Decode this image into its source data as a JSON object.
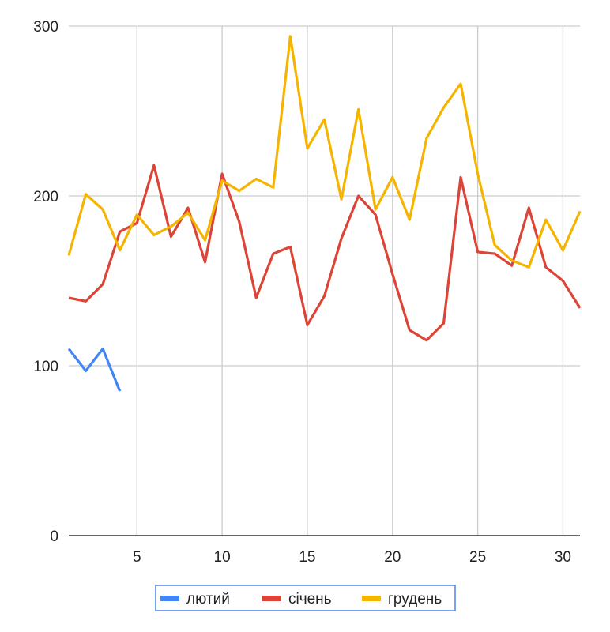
{
  "chart_data": {
    "type": "line",
    "title": "",
    "xlabel": "",
    "ylabel": "",
    "xlim": [
      1,
      31
    ],
    "ylim": [
      0,
      300
    ],
    "x_ticks": [
      5,
      10,
      15,
      20,
      25,
      30
    ],
    "y_ticks": [
      0,
      100,
      200,
      300
    ],
    "grid": true,
    "legend_position": "bottom",
    "series": [
      {
        "name": "лютий",
        "color": "#4285f4",
        "x": [
          1,
          2,
          3,
          4
        ],
        "values": [
          110,
          97,
          110,
          85
        ]
      },
      {
        "name": "січень",
        "color": "#db4437",
        "x": [
          1,
          2,
          3,
          4,
          5,
          6,
          7,
          8,
          9,
          10,
          11,
          12,
          13,
          14,
          15,
          16,
          17,
          18,
          19,
          20,
          21,
          22,
          23,
          24,
          25,
          26,
          27,
          28,
          29,
          30,
          31
        ],
        "values": [
          140,
          138,
          148,
          179,
          184,
          218,
          176,
          193,
          161,
          213,
          185,
          140,
          166,
          170,
          124,
          141,
          175,
          200,
          189,
          154,
          121,
          115,
          125,
          211,
          167,
          166,
          159,
          193,
          158,
          150,
          134
        ]
      },
      {
        "name": "грудень",
        "color": "#f4b400",
        "x": [
          1,
          2,
          3,
          4,
          5,
          6,
          7,
          8,
          9,
          10,
          11,
          12,
          13,
          14,
          15,
          16,
          17,
          18,
          19,
          20,
          21,
          22,
          23,
          24,
          25,
          26,
          27,
          28,
          29,
          30,
          31
        ],
        "values": [
          165,
          201,
          192,
          168,
          189,
          177,
          182,
          190,
          174,
          209,
          203,
          210,
          205,
          294,
          228,
          245,
          198,
          251,
          192,
          211,
          186,
          234,
          252,
          266,
          213,
          171,
          162,
          158,
          186,
          168,
          191
        ]
      }
    ]
  }
}
